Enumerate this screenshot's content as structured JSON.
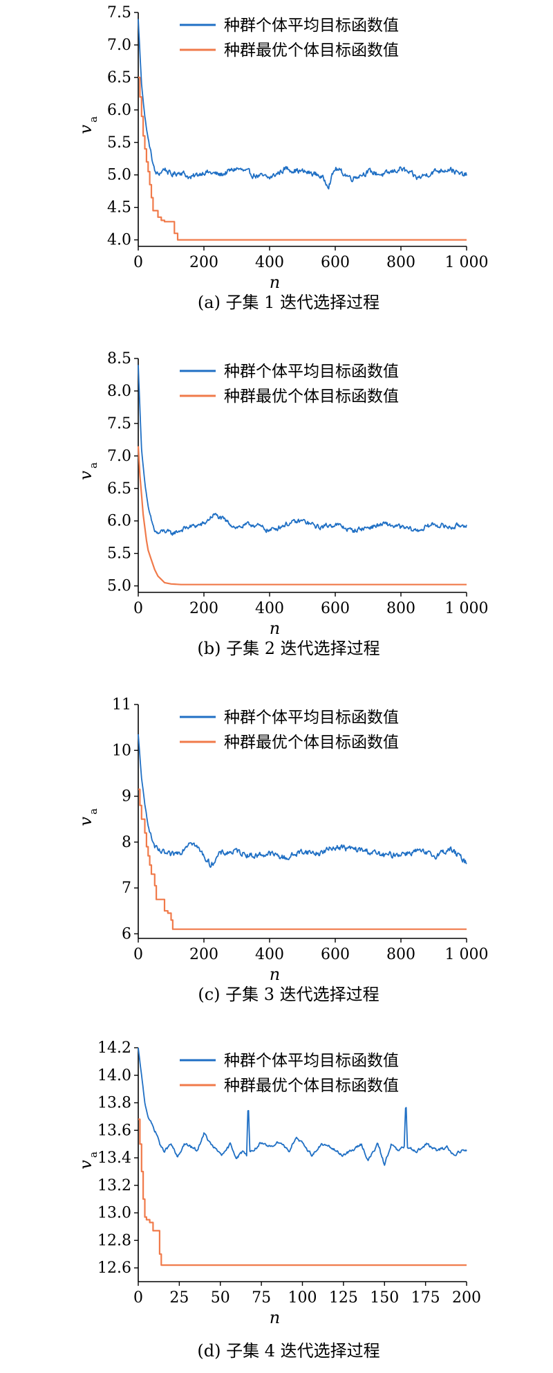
{
  "chart_data": [
    {
      "type": "line",
      "caption": "(a) 子集 1 迭代选择过程",
      "xlabel": "n",
      "ylabel": "v",
      "ylabel_sub": "a",
      "xlim": [
        0,
        1000
      ],
      "ylim": [
        3.9,
        7.5
      ],
      "xticks": [
        0,
        200,
        400,
        600,
        800,
        1000
      ],
      "xtick_labels": [
        "0",
        "200",
        "400",
        "600",
        "800",
        "1 000"
      ],
      "yticks": [
        4.0,
        4.5,
        5.0,
        5.5,
        6.0,
        6.5,
        7.0,
        7.5
      ],
      "ytick_labels": [
        "4.0",
        "4.5",
        "5.0",
        "5.5",
        "6.0",
        "6.5",
        "7.0",
        "7.5"
      ],
      "series": [
        {
          "name": "种群个体平均目标函数值",
          "color": "#1f6fc4",
          "x": [
            0,
            10,
            20,
            30,
            40,
            50,
            60,
            70,
            80,
            100,
            130,
            160,
            200,
            250,
            300,
            350,
            400,
            450,
            500,
            550,
            580,
            600,
            650,
            700,
            750,
            800,
            850,
            900,
            950,
            980,
            1000
          ],
          "y": [
            7.4,
            6.4,
            5.9,
            5.55,
            5.3,
            5.05,
            5.0,
            5.05,
            5.1,
            5.0,
            5.05,
            4.95,
            5.05,
            5.0,
            5.1,
            5.0,
            4.95,
            5.1,
            5.05,
            5.0,
            4.85,
            5.1,
            4.95,
            5.05,
            5.0,
            5.1,
            4.95,
            5.05,
            5.1,
            5.0,
            5.0
          ],
          "noise": 0.08
        },
        {
          "name": "种群最优个体目标函数值",
          "color": "#f07a4a",
          "x": [
            0,
            5,
            10,
            15,
            20,
            25,
            30,
            35,
            40,
            45,
            50,
            60,
            70,
            80,
            100,
            110,
            120,
            200,
            400,
            600,
            800,
            1000
          ],
          "y": [
            6.5,
            6.2,
            5.9,
            5.6,
            5.4,
            5.2,
            5.05,
            4.85,
            4.65,
            4.45,
            4.45,
            4.35,
            4.3,
            4.28,
            4.28,
            4.1,
            4.0,
            4.0,
            4.0,
            4.0,
            4.0,
            4.0
          ],
          "step": true
        }
      ]
    },
    {
      "type": "line",
      "caption": "(b) 子集 2 迭代选择过程",
      "xlabel": "n",
      "ylabel": "v",
      "ylabel_sub": "a",
      "xlim": [
        0,
        1000
      ],
      "ylim": [
        4.9,
        8.5
      ],
      "xticks": [
        0,
        200,
        400,
        600,
        800,
        1000
      ],
      "xtick_labels": [
        "0",
        "200",
        "400",
        "600",
        "800",
        "1 000"
      ],
      "yticks": [
        5.0,
        5.5,
        6.0,
        6.5,
        7.0,
        7.5,
        8.0,
        8.5
      ],
      "ytick_labels": [
        "5.0",
        "5.5",
        "6.0",
        "6.5",
        "7.0",
        "7.5",
        "8.0",
        "8.5"
      ],
      "series": [
        {
          "name": "种群个体平均目标函数值",
          "color": "#1f6fc4",
          "x": [
            0,
            10,
            20,
            30,
            40,
            50,
            60,
            80,
            100,
            150,
            200,
            230,
            300,
            350,
            400,
            450,
            500,
            550,
            600,
            650,
            700,
            750,
            800,
            850,
            900,
            950,
            1000
          ],
          "y": [
            8.4,
            7.1,
            6.6,
            6.2,
            6.0,
            5.85,
            5.8,
            5.85,
            5.8,
            5.9,
            5.95,
            6.1,
            5.9,
            5.95,
            5.85,
            5.95,
            6.0,
            5.9,
            5.95,
            5.85,
            5.9,
            5.95,
            5.9,
            5.85,
            5.95,
            5.9,
            5.95
          ],
          "noise": 0.07
        },
        {
          "name": "种群最优个体目标函数值",
          "color": "#f07a4a",
          "x": [
            0,
            5,
            10,
            15,
            20,
            25,
            30,
            40,
            50,
            60,
            70,
            80,
            100,
            130,
            200,
            400,
            600,
            800,
            1000
          ],
          "y": [
            7.15,
            6.7,
            6.4,
            6.1,
            5.9,
            5.7,
            5.55,
            5.4,
            5.25,
            5.15,
            5.1,
            5.05,
            5.03,
            5.02,
            5.02,
            5.02,
            5.02,
            5.02,
            5.02
          ],
          "step": false
        }
      ]
    },
    {
      "type": "line",
      "caption": "(c) 子集 3 迭代选择过程",
      "xlabel": "n",
      "ylabel": "v",
      "ylabel_sub": "a",
      "xlim": [
        0,
        1000
      ],
      "ylim": [
        5.9,
        11
      ],
      "xticks": [
        0,
        200,
        400,
        600,
        800,
        1000
      ],
      "xtick_labels": [
        "0",
        "200",
        "400",
        "600",
        "800",
        "1 000"
      ],
      "yticks": [
        6,
        7,
        8,
        9,
        10,
        11
      ],
      "ytick_labels": [
        "6",
        "7",
        "8",
        "9",
        "10",
        "11"
      ],
      "series": [
        {
          "name": "种群个体平均目标函数值",
          "color": "#1f6fc4",
          "x": [
            0,
            10,
            20,
            30,
            40,
            50,
            60,
            80,
            100,
            130,
            160,
            200,
            220,
            250,
            300,
            350,
            400,
            450,
            500,
            550,
            600,
            650,
            700,
            750,
            800,
            850,
            900,
            950,
            1000
          ],
          "y": [
            10.35,
            9.4,
            8.8,
            8.4,
            8.1,
            7.9,
            7.8,
            7.75,
            7.7,
            7.8,
            8.05,
            7.7,
            7.5,
            7.75,
            7.8,
            7.7,
            7.75,
            7.65,
            7.8,
            7.75,
            7.9,
            7.85,
            7.8,
            7.7,
            7.75,
            7.8,
            7.7,
            7.85,
            7.55
          ],
          "noise": 0.12
        },
        {
          "name": "种群最优个体目标函数值",
          "color": "#f07a4a",
          "x": [
            0,
            5,
            10,
            20,
            25,
            30,
            35,
            40,
            50,
            55,
            60,
            70,
            80,
            90,
            100,
            105,
            200,
            400,
            600,
            800,
            1000
          ],
          "y": [
            9.15,
            8.8,
            8.5,
            8.2,
            7.9,
            7.7,
            7.5,
            7.3,
            7.05,
            6.75,
            6.75,
            6.75,
            6.5,
            6.45,
            6.3,
            6.1,
            6.1,
            6.1,
            6.1,
            6.1,
            6.1
          ],
          "step": true
        }
      ]
    },
    {
      "type": "line",
      "caption": "(d) 子集 4 迭代选择过程",
      "xlabel": "n",
      "ylabel": "v",
      "ylabel_sub": "a",
      "xlim": [
        0,
        200
      ],
      "ylim": [
        12.5,
        14.2
      ],
      "xticks": [
        0,
        25,
        50,
        75,
        100,
        125,
        150,
        175,
        200
      ],
      "xtick_labels": [
        "0",
        "25",
        "50",
        "75",
        "100",
        "125",
        "150",
        "175",
        "200"
      ],
      "yticks": [
        12.6,
        12.8,
        13.0,
        13.2,
        13.4,
        13.6,
        13.8,
        14.0,
        14.2
      ],
      "ytick_labels": [
        "12.6",
        "12.8",
        "13.0",
        "13.2",
        "13.4",
        "13.6",
        "13.8",
        "14.0",
        "14.2"
      ],
      "series": [
        {
          "name": "种群个体平均目标函数值",
          "color": "#1f6fc4",
          "x": [
            0,
            2,
            4,
            6,
            8,
            10,
            12,
            14,
            16,
            20,
            24,
            28,
            32,
            36,
            40,
            44,
            48,
            52,
            56,
            60,
            64,
            66,
            67,
            68,
            70,
            74,
            80,
            86,
            92,
            96,
            100,
            106,
            112,
            118,
            124,
            130,
            136,
            140,
            146,
            150,
            154,
            158,
            162,
            163,
            164,
            166,
            170,
            176,
            182,
            188,
            192,
            196,
            200
          ],
          "y": [
            14.2,
            14.0,
            13.8,
            13.7,
            13.65,
            13.6,
            13.55,
            13.47,
            13.45,
            13.5,
            13.4,
            13.5,
            13.48,
            13.45,
            13.58,
            13.5,
            13.45,
            13.42,
            13.5,
            13.4,
            13.45,
            13.42,
            13.83,
            13.45,
            13.45,
            13.5,
            13.48,
            13.52,
            13.45,
            13.55,
            13.5,
            13.42,
            13.5,
            13.47,
            13.42,
            13.45,
            13.5,
            13.38,
            13.5,
            13.35,
            13.5,
            13.45,
            13.48,
            13.82,
            13.48,
            13.47,
            13.45,
            13.5,
            13.45,
            13.48,
            13.42,
            13.45,
            13.45
          ],
          "noise": 0.02
        },
        {
          "name": "种群最优个体目标函数值",
          "color": "#f07a4a",
          "x": [
            0,
            1,
            2,
            3,
            4,
            5,
            7,
            9,
            10,
            12,
            13,
            14,
            50,
            100,
            150,
            200
          ],
          "y": [
            13.68,
            13.5,
            13.3,
            13.1,
            12.97,
            12.95,
            12.93,
            12.87,
            12.87,
            12.87,
            12.7,
            12.62,
            12.62,
            12.62,
            12.62,
            12.62
          ],
          "step": true
        }
      ]
    }
  ]
}
